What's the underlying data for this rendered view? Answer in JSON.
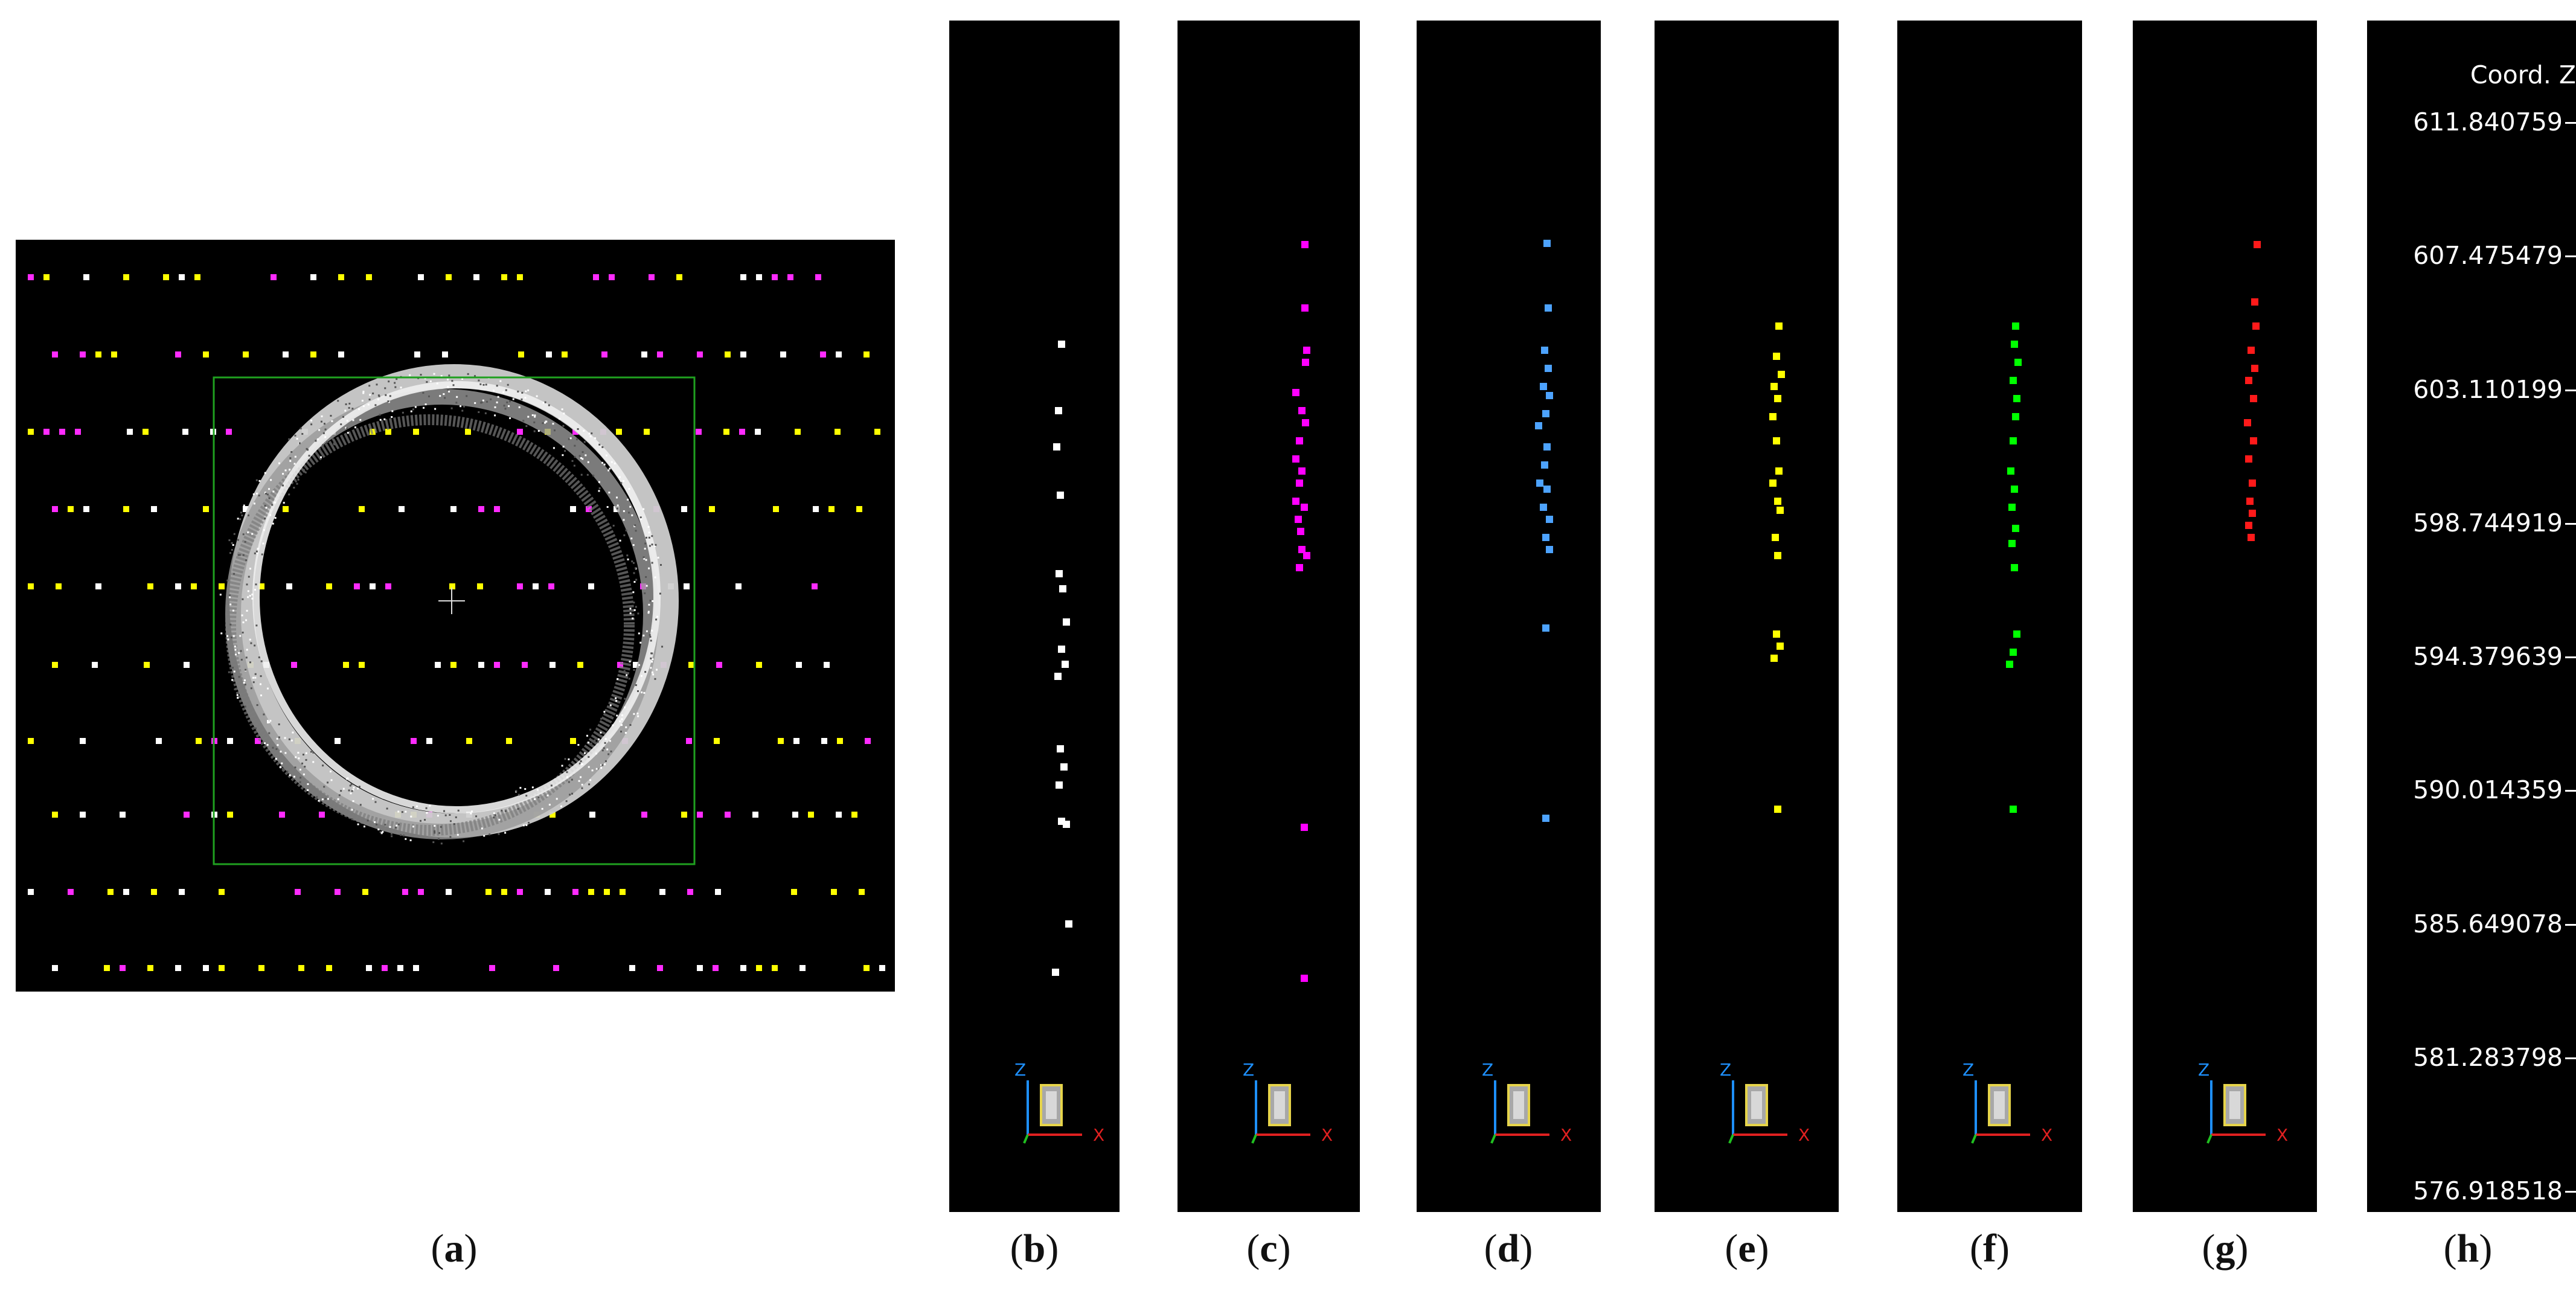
{
  "figure": {
    "panels": [
      {
        "id": "a",
        "caption": "a",
        "view": "top",
        "point_colors": [
          "#ffffff",
          "#ff2bff",
          "#ffff00"
        ]
      },
      {
        "id": "b",
        "caption": "b",
        "view": "side",
        "point_color": "#ffffff"
      },
      {
        "id": "c",
        "caption": "c",
        "view": "side",
        "point_color": "#ff00ff"
      },
      {
        "id": "d",
        "caption": "d",
        "view": "side",
        "point_color": "#4da3ff"
      },
      {
        "id": "e",
        "caption": "e",
        "view": "side",
        "point_color": "#ffff00"
      },
      {
        "id": "f",
        "caption": "f",
        "view": "side",
        "point_color": "#00ff00"
      },
      {
        "id": "g",
        "caption": "g",
        "view": "side",
        "point_color": "#ff1a1a"
      }
    ],
    "axis_triad": {
      "z_label": "Z",
      "x_label": "X"
    }
  },
  "scale_bar": {
    "caption": "h",
    "title": "Coord. Z",
    "values": [
      "611.840759",
      "607.475479",
      "603.110199",
      "598.744919",
      "594.379639",
      "590.014359",
      "585.649078",
      "581.283798",
      "576.918518"
    ]
  },
  "colors": {
    "background": "#000000",
    "selection_box": "#1fa01f",
    "ring": "#d9d9d9"
  }
}
